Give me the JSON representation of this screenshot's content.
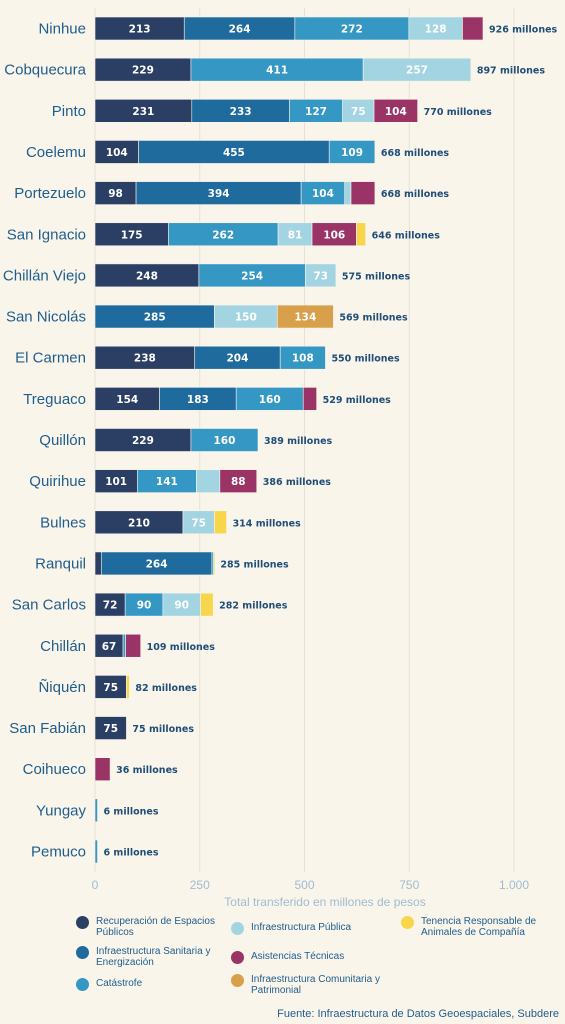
{
  "chart_data": {
    "type": "bar",
    "orientation": "horizontal",
    "stacked": true,
    "xlabel": "Total transferido en millones de pesos",
    "xlim": [
      0,
      1000
    ],
    "xticks": [
      "0",
      "250",
      "500",
      "750",
      "1.000"
    ],
    "grid": true,
    "legend_position": "bottom",
    "total_suffix": "millones",
    "categories": [
      "Ninhue",
      "Cobquecura",
      "Pinto",
      "Coelemu",
      "Portezuelo",
      "San Ignacio",
      "Chillán Viejo",
      "San Nicolás",
      "El Carmen",
      "Treguaco",
      "Quillón",
      "Quirihue",
      "Bulnes",
      "Ranquil",
      "San Carlos",
      "Chillán",
      "Ñiquén",
      "San Fabián",
      "Coihueco",
      "Yungay",
      "Pemuco"
    ],
    "totals": [
      926,
      897,
      770,
      668,
      668,
      646,
      575,
      569,
      550,
      529,
      389,
      386,
      314,
      285,
      282,
      109,
      82,
      75,
      36,
      6,
      6
    ],
    "series": [
      {
        "name": "Recuperación de Espacios Públicos",
        "color": "#2b3f65",
        "values": [
          213,
          229,
          231,
          104,
          98,
          175,
          248,
          0,
          238,
          154,
          229,
          101,
          210,
          15,
          72,
          67,
          75,
          75,
          0,
          0,
          0
        ]
      },
      {
        "name": "Infraestructura Sanitaria y Energización",
        "color": "#1f6b9e",
        "values": [
          264,
          0,
          233,
          455,
          394,
          0,
          0,
          285,
          204,
          183,
          0,
          0,
          0,
          264,
          0,
          0,
          0,
          0,
          0,
          0,
          0
        ]
      },
      {
        "name": "Catástrofe",
        "color": "#3497c4",
        "values": [
          272,
          411,
          127,
          109,
          104,
          262,
          254,
          0,
          108,
          160,
          160,
          141,
          0,
          4,
          90,
          6,
          0,
          0,
          0,
          6,
          6
        ]
      },
      {
        "name": "Infraestructura Pública",
        "color": "#a3d4e2",
        "values": [
          128,
          257,
          75,
          0,
          15,
          81,
          73,
          150,
          0,
          0,
          0,
          56,
          75,
          0,
          90,
          0,
          0,
          0,
          0,
          0,
          0
        ]
      },
      {
        "name": "Asistencias Técnicas",
        "color": "#9a3366",
        "values": [
          49,
          0,
          104,
          0,
          57,
          106,
          0,
          0,
          0,
          32,
          0,
          88,
          0,
          0,
          0,
          36,
          0,
          0,
          36,
          0,
          0
        ]
      },
      {
        "name": "Infraestructura Comunitaria y Patrimonial",
        "color": "#d9a04c",
        "values": [
          0,
          0,
          0,
          0,
          0,
          0,
          0,
          134,
          0,
          0,
          0,
          0,
          0,
          0,
          0,
          0,
          0,
          0,
          0,
          0,
          0
        ]
      },
      {
        "name": "Tenencia Responsable de Animales de Compañía",
        "color": "#f7d64b",
        "values": [
          0,
          0,
          0,
          0,
          0,
          22,
          0,
          0,
          0,
          0,
          0,
          0,
          29,
          2,
          30,
          0,
          7,
          0,
          0,
          0,
          0
        ]
      }
    ],
    "labels_shown_threshold": 65
  },
  "legend": [
    {
      "label": "Recuperación de Espacios Públicos",
      "color": "#2b3f65"
    },
    {
      "label": "Infraestructura Pública",
      "color": "#a3d4e2"
    },
    {
      "label": "Tenencia Responsable de Animales de Compañía",
      "color": "#f7d64b"
    },
    {
      "label": "Infraestructura Sanitaria y Energización",
      "color": "#1f6b9e"
    },
    {
      "label": "Asistencias Técnicas",
      "color": "#9a3366"
    },
    {
      "label": "Catástrofe",
      "color": "#3497c4"
    },
    {
      "label": "Infraestructura Comunitaria y Patrimonial",
      "color": "#d9a04c"
    }
  ],
  "source": "Fuente: Infraestructura de Datos Geoespaciales, Subdere"
}
